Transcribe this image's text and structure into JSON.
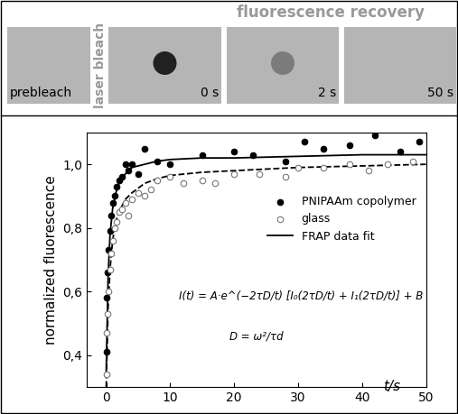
{
  "figure_panel": {
    "header": "fluorescence recovery",
    "side_label": "laser bleach",
    "panels": [
      "prebleach",
      "0 s",
      "2 s",
      "50 s"
    ]
  },
  "chart_data": {
    "type": "scatter",
    "x_label": "t/s",
    "y_label": "normalized fluorescence",
    "xlim": [
      -3,
      50
    ],
    "xticks": [
      0,
      10,
      20,
      30,
      40,
      50
    ],
    "ylim": [
      0.3,
      1.1
    ],
    "yticks": [
      {
        "value": 0.4,
        "label": "0,4"
      },
      {
        "value": 0.6,
        "label": "0,6"
      },
      {
        "value": 0.8,
        "label": "0,8"
      },
      {
        "value": 1.0,
        "label": "1,0"
      }
    ],
    "legend": "center right",
    "grid": false,
    "annotations": [
      "I(t) = A·e^(−2τD/t) [I₀(2τD/t) + I₁(2τD/t)] + B",
      "D = ω²/τd"
    ],
    "series": [
      {
        "name": "PNIPAAm copolymer",
        "type": "scatter",
        "color": "#000000",
        "marker": "filled",
        "x": [
          0,
          0.1,
          0.2,
          0.4,
          0.6,
          0.8,
          1,
          1.3,
          1.6,
          2,
          2.5,
          3,
          3.5,
          4,
          5,
          6,
          8,
          10,
          15,
          20,
          23,
          28,
          31,
          34,
          38,
          42,
          46,
          49
        ],
        "values": [
          0.41,
          0.58,
          0.66,
          0.73,
          0.79,
          0.84,
          0.88,
          0.9,
          0.93,
          0.95,
          0.96,
          1.0,
          0.98,
          1.0,
          0.97,
          1.05,
          1.01,
          1.0,
          1.03,
          1.04,
          1.03,
          1.01,
          1.07,
          1.05,
          1.06,
          1.09,
          1.04,
          1.07
        ]
      },
      {
        "name": "glass",
        "type": "scatter",
        "color": "#000000",
        "marker": "open",
        "x": [
          0,
          0.1,
          0.2,
          0.4,
          0.6,
          0.8,
          1,
          1.3,
          1.6,
          2,
          2.5,
          3,
          3.5,
          4,
          5,
          6,
          7,
          8,
          10,
          12,
          15,
          17,
          20,
          24,
          28,
          30,
          34,
          38,
          41,
          44,
          48
        ],
        "values": [
          0.34,
          0.47,
          0.53,
          0.6,
          0.67,
          0.72,
          0.76,
          0.8,
          0.82,
          0.85,
          0.86,
          0.88,
          0.84,
          0.89,
          0.91,
          0.9,
          0.92,
          0.95,
          0.96,
          0.94,
          0.95,
          0.94,
          0.97,
          0.97,
          0.96,
          0.99,
          0.99,
          1.0,
          0.98,
          1.0,
          1.01
        ]
      },
      {
        "name": "FRAP data fit",
        "type": "line",
        "color": "#000000",
        "line_style": "solid",
        "x": [
          0,
          0.3,
          0.6,
          1,
          1.5,
          2,
          3,
          4,
          6,
          8,
          10,
          15,
          20,
          30,
          40,
          50
        ],
        "values": [
          0.35,
          0.65,
          0.78,
          0.86,
          0.91,
          0.94,
          0.97,
          0.99,
          1.0,
          1.01,
          1.015,
          1.02,
          1.02,
          1.025,
          1.03,
          1.03
        ]
      },
      {
        "type": "line",
        "color": "#000000",
        "line_style": "dashed",
        "x": [
          0,
          0.3,
          0.6,
          1,
          1.5,
          2,
          3,
          4,
          6,
          8,
          10,
          15,
          20,
          30,
          40,
          50
        ],
        "values": [
          0.3,
          0.55,
          0.67,
          0.76,
          0.82,
          0.85,
          0.89,
          0.91,
          0.94,
          0.955,
          0.965,
          0.975,
          0.98,
          0.99,
          0.995,
          1.0
        ]
      }
    ]
  }
}
